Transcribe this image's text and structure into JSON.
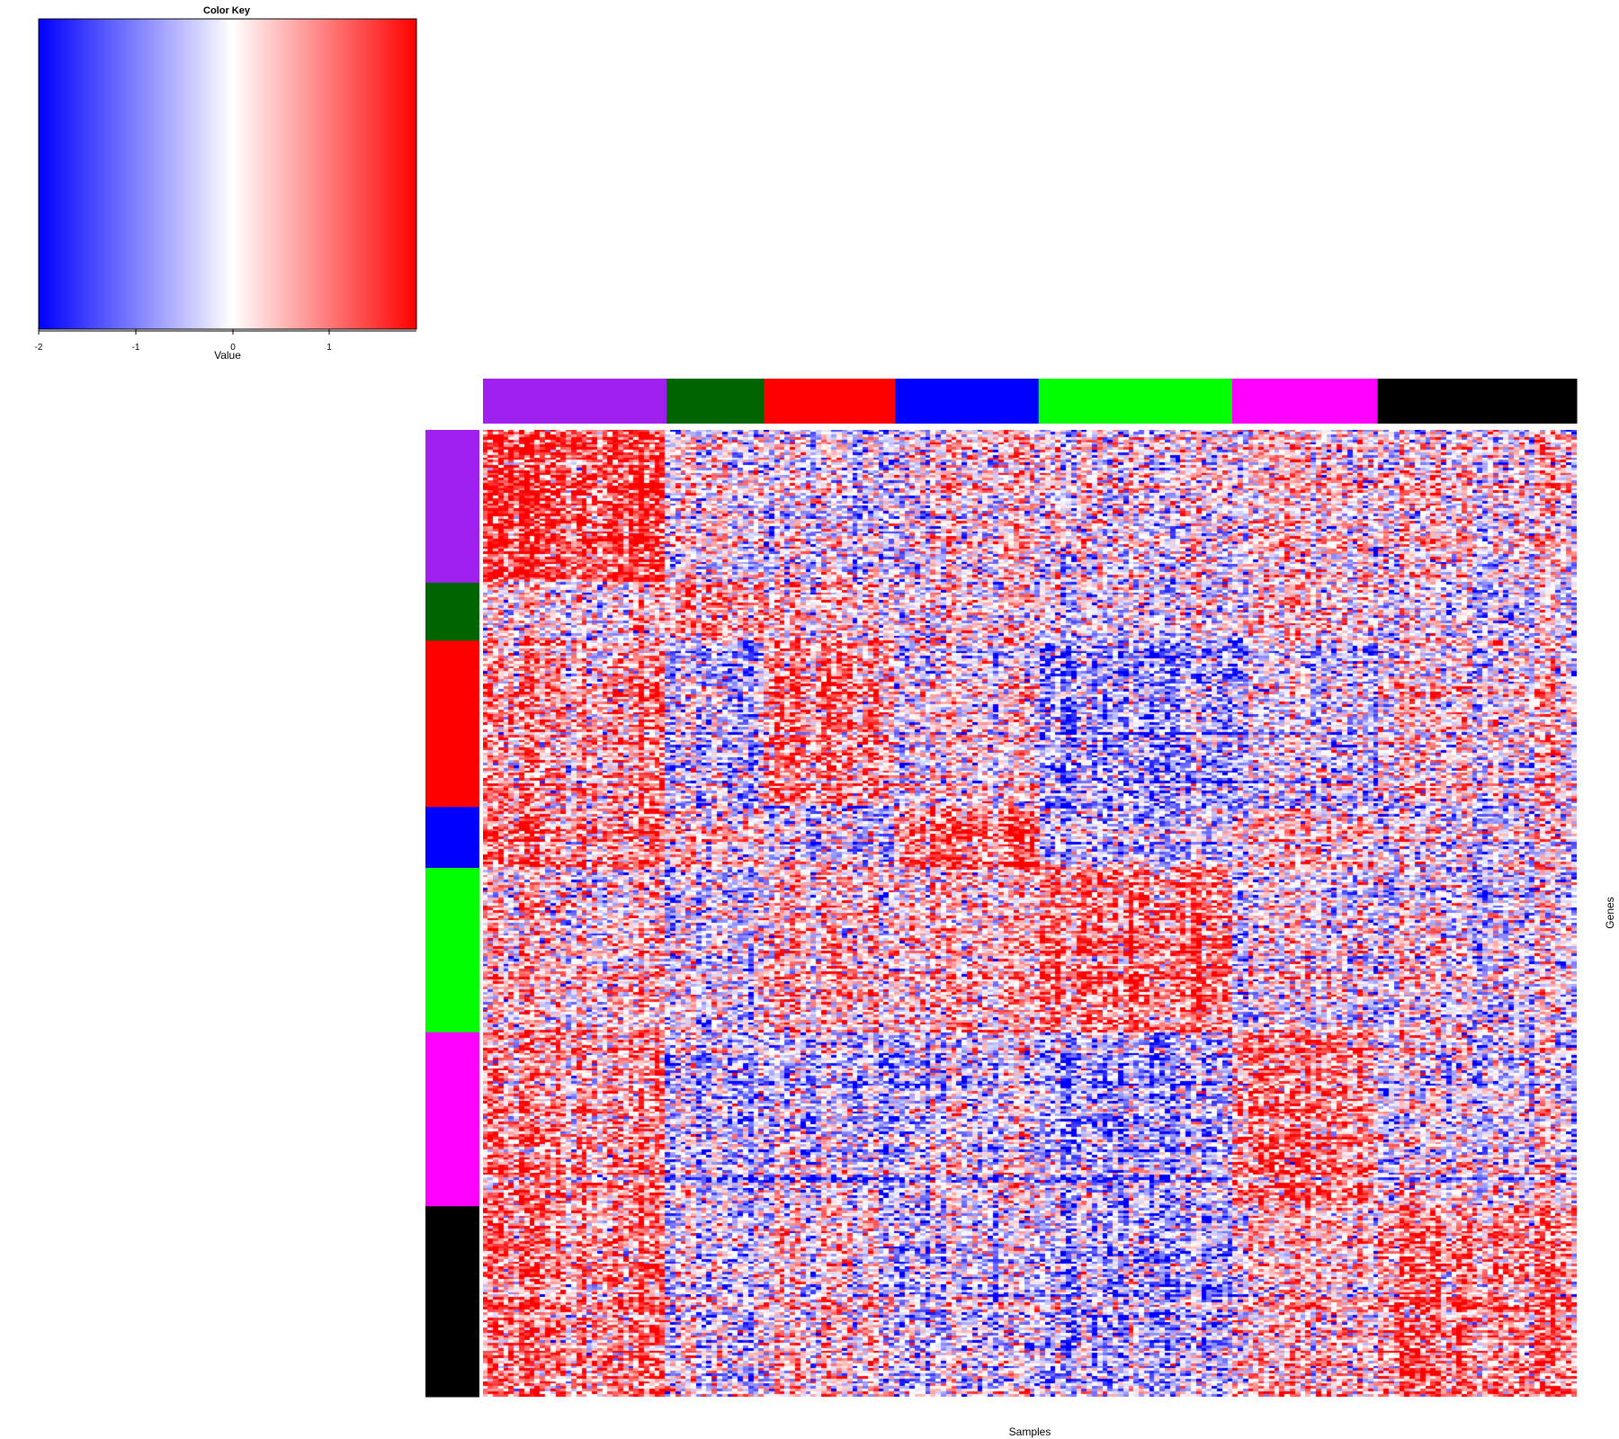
{
  "chart_data": {
    "type": "heatmap",
    "color_key": {
      "title": "Color Key",
      "xlabel": "Value",
      "ticks": [
        -2,
        -1,
        0,
        1
      ],
      "range": [
        -2,
        1.9
      ],
      "colors": {
        "low": "#0000ff",
        "mid": "#ffffff",
        "high": "#ff0000"
      }
    },
    "xlabel": "Samples",
    "ylabel": "Genes",
    "column_groups": [
      {
        "name": "purple",
        "color": "#a020f0",
        "fraction": 0.168
      },
      {
        "name": "darkgreen",
        "color": "#006400",
        "fraction": 0.089
      },
      {
        "name": "red",
        "color": "#ff0000",
        "fraction": 0.12
      },
      {
        "name": "blue",
        "color": "#0000ff",
        "fraction": 0.131
      },
      {
        "name": "green",
        "color": "#00ff00",
        "fraction": 0.177
      },
      {
        "name": "magenta",
        "color": "#ff00ff",
        "fraction": 0.133
      },
      {
        "name": "black",
        "color": "#000000",
        "fraction": 0.182
      }
    ],
    "row_groups": [
      {
        "name": "purple",
        "color": "#a020f0",
        "fraction": 0.158
      },
      {
        "name": "darkgreen",
        "color": "#006400",
        "fraction": 0.06
      },
      {
        "name": "red",
        "color": "#ff0000",
        "fraction": 0.172
      },
      {
        "name": "blue",
        "color": "#0000ff",
        "fraction": 0.063
      },
      {
        "name": "green",
        "color": "#00ff00",
        "fraction": 0.17
      },
      {
        "name": "magenta",
        "color": "#ff00ff",
        "fraction": 0.18
      },
      {
        "name": "black",
        "color": "#000000",
        "fraction": 0.197
      }
    ],
    "n_rows": 380,
    "n_cols": 210
  }
}
